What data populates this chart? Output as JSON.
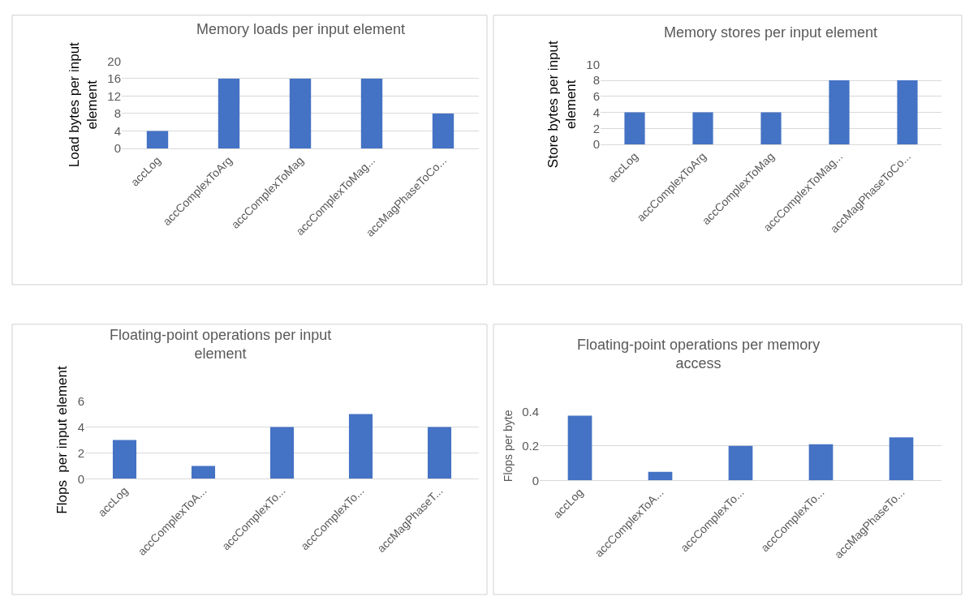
{
  "chart_data": [
    {
      "type": "bar",
      "title": "Memory loads per input element",
      "ylabel": "Load bytes per input element",
      "categories": [
        "accLog",
        "accComplexToArg",
        "accComplexToMag",
        "accComplexToMag...",
        "accMagPhaseToCo..."
      ],
      "values": [
        4,
        16,
        16,
        16,
        8
      ],
      "color": "#4472c4",
      "ylim": [
        0,
        20
      ],
      "yticks": [
        0,
        4,
        8,
        12,
        16,
        20
      ],
      "grid": "y"
    },
    {
      "type": "bar",
      "title": "Memory stores per input element",
      "ylabel": "Store bytes per input element",
      "categories": [
        "accLog",
        "accComplexToArg",
        "accComplexToMag",
        "accComplexToMag...",
        "accMagPhaseToCo..."
      ],
      "values": [
        4,
        4,
        4,
        8,
        8
      ],
      "color": "#4472c4",
      "ylim": [
        0,
        10
      ],
      "yticks": [
        0,
        2,
        4,
        6,
        8,
        10
      ],
      "grid": "y"
    },
    {
      "type": "bar",
      "title": "Floating-point operations per input element",
      "ylabel": "Flops  per input element",
      "categories": [
        "accLog",
        "accComplexToA...",
        "accComplexTo...",
        "accComplexTo...",
        "accMagPhaseT..."
      ],
      "values": [
        3,
        1,
        4,
        5,
        4
      ],
      "color": "#4472c4",
      "ylim": [
        0,
        6
      ],
      "yticks": [
        0,
        2,
        4,
        6
      ],
      "grid": "y"
    },
    {
      "type": "bar",
      "title": "Floating-point operations per memory access",
      "ylabel": "Flops per byte",
      "categories": [
        "accLog",
        "accComplexToA...",
        "accComplexTo...",
        "accComplexTo...",
        "accMagPhaseTo..."
      ],
      "values": [
        0.375,
        0.05,
        0.2,
        0.21,
        0.25
      ],
      "color": "#4472c4",
      "ylim": [
        0,
        0.4
      ],
      "yticks": [
        0,
        0.2,
        0.4
      ],
      "grid": "y"
    }
  ]
}
